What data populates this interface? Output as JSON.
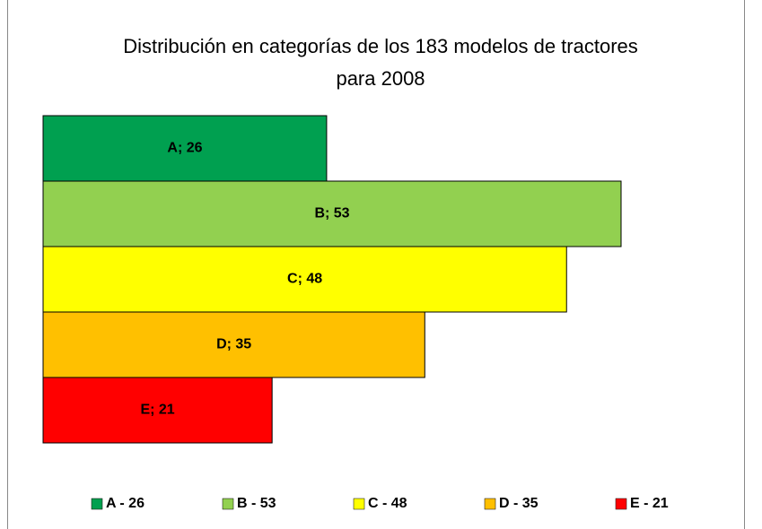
{
  "chart_data": {
    "type": "bar",
    "orientation": "horizontal",
    "title": "Distribución en categorías de los 183 modelos de tractores para 2008",
    "series": [
      {
        "name": "A - 26",
        "color": "#00a050",
        "values": [
          26
        ],
        "value_labels": [
          "A; 26"
        ]
      },
      {
        "name": "B - 53",
        "color": "#92d050",
        "values": [
          53
        ],
        "value_labels": [
          "B; 53"
        ]
      },
      {
        "name": "C - 48",
        "color": "#ffff00",
        "values": [
          48
        ],
        "value_labels": [
          "C; 48"
        ]
      },
      {
        "name": "D - 35",
        "color": "#ffc000",
        "values": [
          35
        ],
        "value_labels": [
          "D; 35"
        ]
      },
      {
        "name": "E - 21",
        "color": "#ff0000",
        "values": [
          21
        ],
        "value_labels": [
          "E; 21"
        ]
      }
    ],
    "legend": "bottom"
  }
}
